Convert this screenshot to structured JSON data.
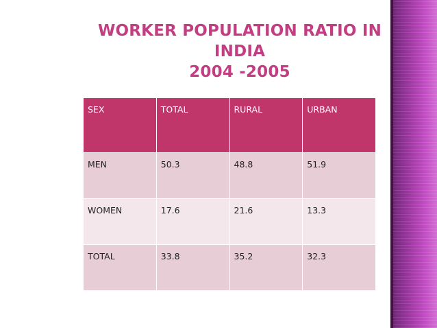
{
  "slide": {
    "title_line1": "WORKER POPULATION RATIO IN INDIA",
    "title_line2": "2004 -2005"
  },
  "table": {
    "headers": [
      "SEX",
      "TOTAL",
      "RURAL",
      "URBAN"
    ],
    "rows": [
      [
        "MEN",
        "50.3",
        "48.8",
        "51.9"
      ],
      [
        "WOMEN",
        "17.6",
        "21.6",
        "13.3"
      ],
      [
        "TOTAL",
        "33.8",
        "35.2",
        "32.3"
      ]
    ]
  },
  "colors": {
    "title": "#c33d82",
    "header_fill": "#c0366a",
    "row_fill_a": "#e7ced6",
    "row_fill_b": "#f3e7eb",
    "side_band": "#a33aa6"
  }
}
